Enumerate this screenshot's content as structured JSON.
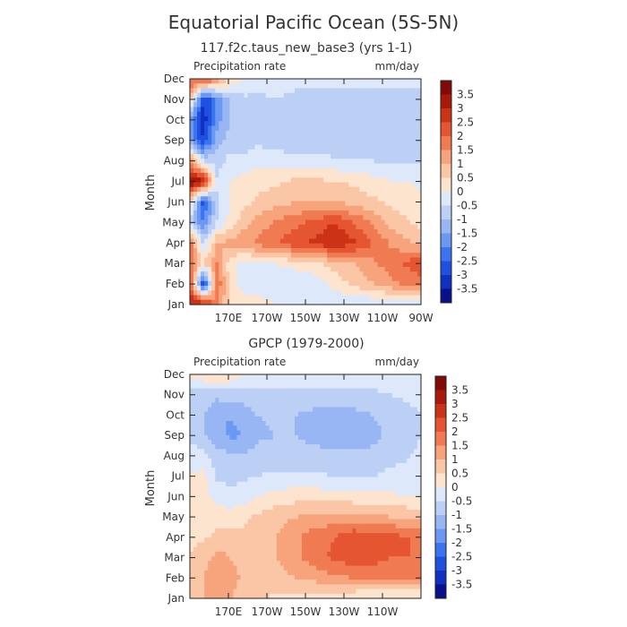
{
  "title": "Equatorial Pacific Ocean (5S-5N)",
  "colors": {
    "levels": [
      "#08108e",
      "#1030c0",
      "#2050e0",
      "#3a74ee",
      "#6a98f2",
      "#98b6f3",
      "#bcd0f6",
      "#dde8fb",
      "#fde4cf",
      "#fac6a6",
      "#f7a47c",
      "#f07b53",
      "#e55531",
      "#cc3216",
      "#a8190a",
      "#820a06"
    ],
    "frame": "#222222"
  },
  "panels": [
    {
      "subtitle": "117.f2c.taus_new_base3 (yrs 1-1)",
      "left_label": "Precipitation rate",
      "right_label": "mm/day",
      "ylabel": "Month",
      "x_ticks": [
        "170E",
        "170W",
        "150W",
        "130W",
        "110W",
        "90W"
      ],
      "y_ticks": [
        "Jan",
        "Feb",
        "Mar",
        "Apr",
        "May",
        "Jun",
        "Jul",
        "Aug",
        "Sep",
        "Oct",
        "Nov",
        "Dec"
      ],
      "cbar_labels": [
        "3.5",
        "3",
        "2.5",
        "2",
        "1.5",
        "1",
        "0.5",
        "0",
        "-0.5",
        "-1",
        "-1.5",
        "-2",
        "-2.5",
        "-3",
        "-3.5"
      ]
    },
    {
      "subtitle": "GPCP (1979-2000)",
      "left_label": "Precipitation rate",
      "right_label": "mm/day",
      "ylabel": "Month",
      "x_ticks": [
        "170E",
        "170W",
        "150W",
        "130W",
        "110W"
      ],
      "y_ticks": [
        "Jan",
        "Feb",
        "Mar",
        "Apr",
        "May",
        "Jun",
        "Jul",
        "Aug",
        "Sep",
        "Oct",
        "Nov",
        "Dec"
      ],
      "cbar_labels": [
        "3.5",
        "3",
        "2.5",
        "2",
        "1.5",
        "1",
        "0.5",
        "0",
        "-0.5",
        "-1",
        "-1.5",
        "-2",
        "-2.5",
        "-3",
        "-3.5"
      ]
    }
  ],
  "chart_data": [
    {
      "type": "heatmap",
      "title": "117.f2c.taus_new_base3 (yrs 1-1)",
      "variable": "Precipitation rate",
      "units": "mm/day",
      "xlabel": "",
      "ylabel": "Month",
      "x_range_lon_east": [
        150,
        270
      ],
      "x_ticks_lon_east": [
        170,
        190,
        210,
        230,
        250,
        270
      ],
      "y_range_month": [
        1,
        12
      ],
      "levels": [
        -3.5,
        -3,
        -2.5,
        -2,
        -1.5,
        -1,
        -0.5,
        0,
        0.5,
        1,
        1.5,
        2,
        2.5,
        3,
        3.5
      ],
      "lon": [
        150,
        157,
        164,
        171,
        178,
        185,
        195,
        205,
        215,
        225,
        235,
        245,
        255,
        265,
        270
      ],
      "z": [
        [
          3.0,
          3.2,
          1.5,
          0.5,
          0.3,
          0.2,
          0.0,
          -0.3,
          -0.3,
          -0.5,
          -0.5,
          -0.5,
          -0.5,
          -0.5,
          -0.5
        ],
        [
          2.5,
          -3.2,
          2.0,
          0.3,
          -0.2,
          -0.3,
          -0.3,
          -0.5,
          -0.3,
          0.2,
          0.6,
          1.0,
          1.4,
          1.6,
          1.6
        ],
        [
          2.0,
          0.5,
          1.5,
          0.2,
          -0.3,
          0.0,
          0.0,
          0.2,
          0.4,
          0.7,
          1.0,
          1.4,
          1.8,
          2.2,
          2.5
        ],
        [
          1.8,
          -0.6,
          1.0,
          1.2,
          1.4,
          1.6,
          2.0,
          2.4,
          2.6,
          3.0,
          2.6,
          2.0,
          1.4,
          1.0,
          0.8
        ],
        [
          -0.8,
          -2.0,
          -0.5,
          0.2,
          0.8,
          1.2,
          1.6,
          1.8,
          2.2,
          2.5,
          2.0,
          1.4,
          0.8,
          0.5,
          0.3
        ],
        [
          0.5,
          -2.8,
          -0.6,
          0.0,
          0.3,
          0.6,
          0.8,
          1.0,
          1.0,
          1.0,
          0.8,
          0.6,
          0.4,
          0.2,
          0.1
        ],
        [
          3.6,
          3.2,
          -0.4,
          0.0,
          0.2,
          0.3,
          0.4,
          0.6,
          0.6,
          0.5,
          0.4,
          0.2,
          0.0,
          0.0,
          -0.1
        ],
        [
          1.5,
          -0.5,
          -0.8,
          -0.3,
          -0.3,
          -0.2,
          -0.3,
          -0.3,
          -0.3,
          -0.4,
          -0.5,
          -0.5,
          -0.6,
          -0.6,
          -0.6
        ],
        [
          -1.5,
          -3.0,
          -1.2,
          -0.8,
          -0.8,
          -0.6,
          -0.7,
          -0.8,
          -0.8,
          -0.9,
          -0.9,
          -0.9,
          -0.9,
          -0.8,
          -0.8
        ],
        [
          -1.8,
          -3.4,
          -1.8,
          -1.0,
          -0.8,
          -0.8,
          -0.8,
          -0.9,
          -1.0,
          -1.0,
          -1.0,
          -1.0,
          -1.0,
          -0.9,
          -0.9
        ],
        [
          1.0,
          -3.0,
          -2.0,
          -1.0,
          -0.6,
          -0.6,
          -0.5,
          -0.6,
          -0.6,
          -0.6,
          -0.6,
          -0.6,
          -0.6,
          -0.6,
          -0.6
        ],
        [
          2.0,
          2.5,
          1.6,
          0.5,
          0.0,
          -0.3,
          -0.3,
          -0.4,
          -0.4,
          -0.4,
          -0.4,
          -0.4,
          -0.4,
          -0.4,
          -0.4
        ]
      ]
    },
    {
      "type": "heatmap",
      "title": "GPCP (1979-2000)",
      "variable": "Precipitation rate",
      "units": "mm/day",
      "xlabel": "",
      "ylabel": "Month",
      "x_range_lon_east": [
        150,
        270
      ],
      "x_ticks_lon_east": [
        170,
        190,
        210,
        230,
        250
      ],
      "y_range_month": [
        1,
        12
      ],
      "levels": [
        -3.5,
        -3,
        -2.5,
        -2,
        -1.5,
        -1,
        -0.5,
        0,
        0.5,
        1,
        1.5,
        2,
        2.5,
        3,
        3.5
      ],
      "lon": [
        150,
        157,
        164,
        171,
        178,
        185,
        195,
        205,
        215,
        225,
        235,
        245,
        255,
        265,
        270
      ],
      "z": [
        [
          0.8,
          1.0,
          1.2,
          1.0,
          0.8,
          0.6,
          0.4,
          0.3,
          0.2,
          0.1,
          0.0,
          -0.2,
          -0.2,
          -0.1,
          -0.1
        ],
        [
          0.8,
          1.0,
          1.4,
          1.2,
          0.9,
          0.8,
          0.8,
          1.0,
          1.2,
          1.4,
          1.5,
          1.6,
          1.6,
          1.6,
          1.6
        ],
        [
          0.6,
          0.8,
          1.2,
          1.0,
          0.8,
          0.8,
          1.0,
          1.4,
          1.8,
          2.1,
          2.3,
          2.2,
          2.0,
          2.0,
          1.8
        ],
        [
          0.3,
          0.4,
          0.6,
          0.6,
          0.6,
          0.8,
          1.0,
          1.4,
          1.8,
          2.0,
          2.4,
          2.3,
          2.2,
          2.0,
          1.8
        ],
        [
          0.1,
          0.2,
          0.3,
          0.3,
          0.4,
          0.6,
          0.8,
          1.0,
          1.1,
          1.2,
          1.2,
          1.1,
          1.0,
          0.9,
          0.8
        ],
        [
          0.0,
          0.2,
          -0.2,
          -0.4,
          -0.3,
          0.0,
          0.2,
          0.3,
          0.3,
          0.2,
          0.2,
          0.1,
          0.1,
          0.0,
          0.0
        ],
        [
          0.0,
          0.2,
          -0.6,
          -0.6,
          -0.6,
          -0.5,
          -0.4,
          -0.4,
          -0.4,
          -0.5,
          -0.5,
          -0.5,
          -0.4,
          -0.4,
          -0.4
        ],
        [
          -0.2,
          -0.4,
          -0.8,
          -0.9,
          -0.9,
          -0.8,
          -0.8,
          -0.8,
          -0.8,
          -0.9,
          -0.9,
          -0.8,
          -0.6,
          -0.5,
          -0.4
        ],
        [
          -0.6,
          -0.9,
          -1.4,
          -1.6,
          -1.5,
          -1.1,
          -1.0,
          -1.0,
          -1.2,
          -1.3,
          -1.3,
          -1.2,
          -0.8,
          -0.6,
          -0.5
        ],
        [
          -0.8,
          -1.0,
          -1.3,
          -1.5,
          -1.2,
          -1.0,
          -0.9,
          -1.0,
          -1.2,
          -1.2,
          -1.2,
          -1.0,
          -0.7,
          -0.6,
          -0.5
        ],
        [
          -0.8,
          -0.8,
          -0.9,
          -0.8,
          -0.8,
          -0.7,
          -0.6,
          -0.6,
          -0.6,
          -0.6,
          -0.6,
          -0.6,
          -0.5,
          -0.4,
          -0.4
        ],
        [
          0.2,
          0.4,
          0.6,
          0.4,
          0.0,
          -0.2,
          -0.2,
          -0.2,
          -0.2,
          -0.2,
          -0.2,
          -0.2,
          -0.2,
          -0.2,
          -0.2
        ]
      ]
    }
  ]
}
